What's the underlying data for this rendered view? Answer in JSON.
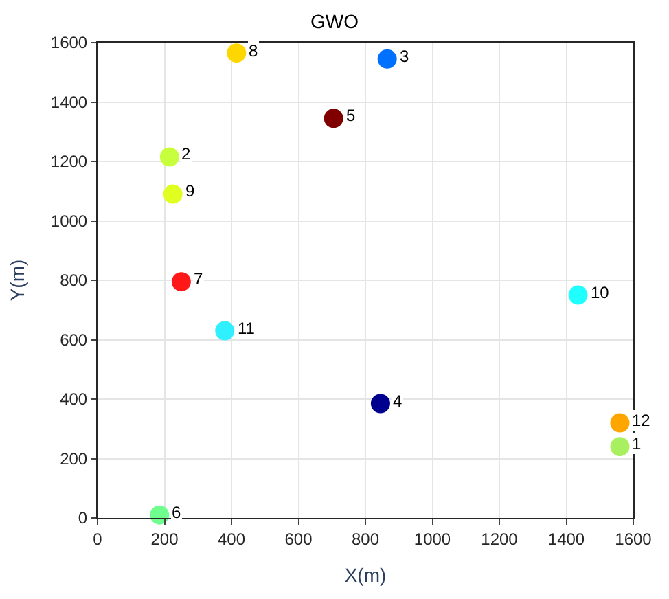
{
  "chart_data": {
    "type": "scatter",
    "title": "GWO",
    "xlabel": "X(m)",
    "ylabel": "Y(m)",
    "x": [
      1560,
      215,
      865,
      845,
      705,
      185,
      250,
      415,
      225,
      1435,
      380,
      1560
    ],
    "values": [
      240,
      1215,
      1545,
      385,
      1345,
      10,
      795,
      1565,
      1090,
      750,
      630,
      320
    ],
    "annotations": [
      {
        "text": "1",
        "x": 1560,
        "y": 240
      },
      {
        "text": "2",
        "x": 215,
        "y": 1215
      },
      {
        "text": "3",
        "x": 865,
        "y": 1545
      },
      {
        "text": "4",
        "x": 845,
        "y": 385
      },
      {
        "text": "5",
        "x": 705,
        "y": 1345
      },
      {
        "text": "6",
        "x": 185,
        "y": 10
      },
      {
        "text": "7",
        "x": 250,
        "y": 795
      },
      {
        "text": "8",
        "x": 415,
        "y": 1565
      },
      {
        "text": "9",
        "x": 225,
        "y": 1090
      },
      {
        "text": "10",
        "x": 1435,
        "y": 750
      },
      {
        "text": "11",
        "x": 380,
        "y": 630
      },
      {
        "text": "12",
        "x": 1560,
        "y": 320
      }
    ],
    "colors": [
      "#a8f060",
      "#c8ff3c",
      "#0070ff",
      "#00008f",
      "#800000",
      "#70ff8f",
      "#ff1818",
      "#ffd700",
      "#e0ff20",
      "#20ffff",
      "#30f0ff",
      "#ffa500"
    ],
    "xlim": [
      0,
      1600
    ],
    "xticks": [
      0,
      200,
      400,
      600,
      800,
      1000,
      1200,
      1400,
      1600
    ],
    "ylim": [
      0,
      1600
    ],
    "yticks": [
      0,
      200,
      400,
      600,
      800,
      1000,
      1200,
      1400,
      1600
    ],
    "grid": true,
    "marker": "circle"
  }
}
